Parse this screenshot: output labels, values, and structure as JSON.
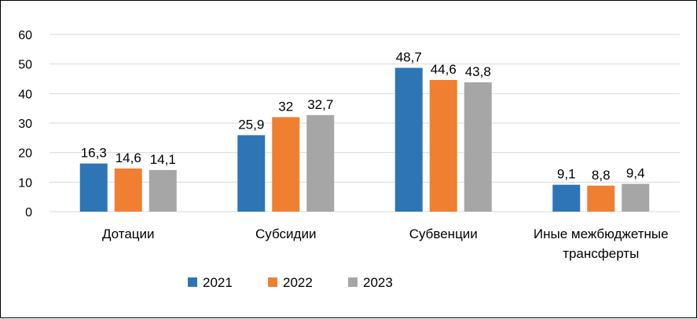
{
  "chart_data": {
    "type": "bar",
    "categories": [
      [
        "Дотации"
      ],
      [
        "Субсидии"
      ],
      [
        "Субвенции"
      ],
      [
        "Иные межбюджетные",
        "трансферты"
      ]
    ],
    "series": [
      {
        "name": "2021",
        "values": [
          16.3,
          25.9,
          48.7,
          9.1
        ],
        "labels": [
          "16,3",
          "25,9",
          "48,7",
          "9,1"
        ],
        "color": "#2E75B6"
      },
      {
        "name": "2022",
        "values": [
          14.6,
          32,
          44.6,
          8.8
        ],
        "labels": [
          "14,6",
          "32",
          "44,6",
          "8,8"
        ],
        "color": "#F07F32"
      },
      {
        "name": "2023",
        "values": [
          14.1,
          32.7,
          43.8,
          9.4
        ],
        "labels": [
          "14,1",
          "32,7",
          "43,8",
          "9,4"
        ],
        "color": "#A6A6A6"
      }
    ],
    "ylim": [
      0,
      60
    ],
    "yticks": [
      "0",
      "10",
      "20",
      "30",
      "40",
      "50",
      "60"
    ],
    "grid": true,
    "legend_position": "bottom",
    "gridline_color": "#D9D9D9"
  }
}
